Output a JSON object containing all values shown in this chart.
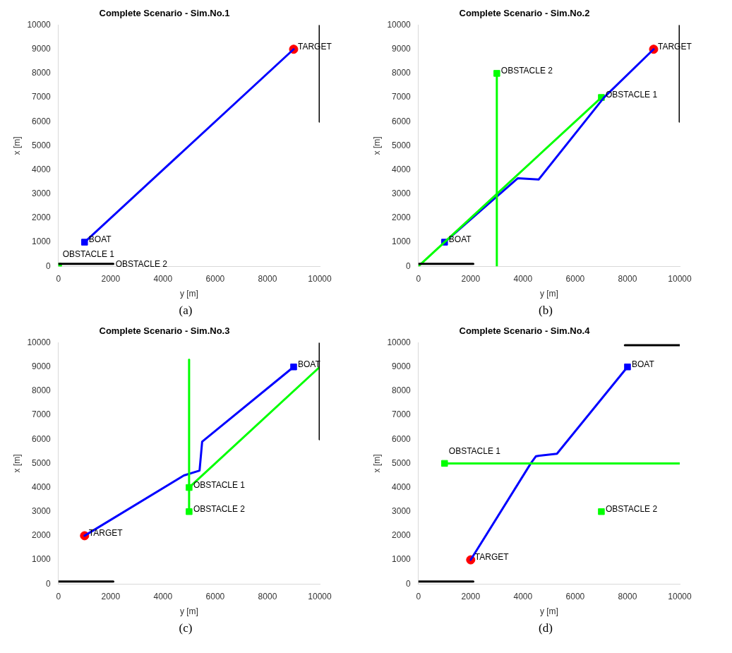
{
  "chart_data": [
    {
      "type": "line",
      "title": "Complete Scenario - Sim.No.1",
      "xlabel": "y [m]",
      "ylabel": "x [m]",
      "xlim": [
        0,
        10000
      ],
      "xticks": [
        0,
        2000,
        4000,
        6000,
        8000,
        10000
      ],
      "ylim": [
        0,
        10000
      ],
      "yticks": [
        0,
        1000,
        2000,
        3000,
        4000,
        5000,
        6000,
        7000,
        8000,
        9000,
        10000
      ],
      "grid": false,
      "legend": false,
      "annotations": [
        "(a)"
      ],
      "series": [
        {
          "type": "line",
          "color": "#000000",
          "x": [
            10000,
            10000
          ],
          "values": [
            6000,
            10000
          ]
        },
        {
          "type": "line",
          "color": "#000000",
          "x": [
            0,
            2100
          ],
          "values": [
            100,
            100
          ]
        },
        {
          "type": "line",
          "color": "#0000ff",
          "x": [
            1000,
            9000
          ],
          "values": [
            1000,
            9000
          ]
        },
        {
          "type": "scatter",
          "name": "BOAT",
          "color": "#0000ff",
          "marker": "square",
          "x": [
            1000
          ],
          "values": [
            1000
          ]
        },
        {
          "type": "scatter",
          "name": "TARGET",
          "color": "#ff0000",
          "marker": "circle",
          "x": [
            9000
          ],
          "values": [
            9000
          ]
        },
        {
          "type": "scatter",
          "name": "OBSTACLE 1",
          "color": "#00ff00",
          "marker": "square",
          "x": [
            0
          ],
          "values": [
            0
          ]
        },
        {
          "type": "scatter",
          "name": "OBSTACLE 2",
          "color": "#00ff00",
          "marker": "square",
          "x": [
            0
          ],
          "values": [
            0
          ]
        }
      ]
    },
    {
      "type": "line",
      "title": "Complete Scenario - Sim.No.2",
      "xlabel": "y [m]",
      "ylabel": "x [m]",
      "xlim": [
        0,
        10000
      ],
      "xticks": [
        0,
        2000,
        4000,
        6000,
        8000,
        10000
      ],
      "ylim": [
        0,
        10000
      ],
      "yticks": [
        0,
        1000,
        2000,
        3000,
        4000,
        5000,
        6000,
        7000,
        8000,
        9000,
        10000
      ],
      "grid": false,
      "legend": false,
      "annotations": [
        "(b)"
      ],
      "series": [
        {
          "type": "line",
          "color": "#000000",
          "x": [
            10000,
            10000
          ],
          "values": [
            6000,
            10000
          ]
        },
        {
          "type": "line",
          "color": "#000000",
          "x": [
            0,
            2100
          ],
          "values": [
            100,
            100
          ]
        },
        {
          "type": "line",
          "color": "#00ff00",
          "x": [
            7000,
            0
          ],
          "values": [
            7000,
            0
          ]
        },
        {
          "type": "line",
          "color": "#00ff00",
          "x": [
            3000,
            3000
          ],
          "values": [
            8000,
            0
          ]
        },
        {
          "type": "line",
          "color": "#0000ff",
          "x": [
            1000,
            3800,
            4600,
            7100,
            9000
          ],
          "values": [
            1000,
            3650,
            3600,
            7000,
            9000
          ]
        },
        {
          "type": "scatter",
          "name": "BOAT",
          "color": "#0000ff",
          "marker": "square",
          "x": [
            1000
          ],
          "values": [
            1000
          ]
        },
        {
          "type": "scatter",
          "name": "TARGET",
          "color": "#ff0000",
          "marker": "circle",
          "x": [
            9000
          ],
          "values": [
            9000
          ]
        },
        {
          "type": "scatter",
          "name": "OBSTACLE 1",
          "color": "#00ff00",
          "marker": "square",
          "x": [
            7000
          ],
          "values": [
            7000
          ]
        },
        {
          "type": "scatter",
          "name": "OBSTACLE 2",
          "color": "#00ff00",
          "marker": "square",
          "x": [
            3000
          ],
          "values": [
            8000
          ]
        }
      ]
    },
    {
      "type": "line",
      "title": "Complete Scenario - Sim.No.3",
      "xlabel": "y [m]",
      "ylabel": "x [m]",
      "xlim": [
        0,
        10000
      ],
      "xticks": [
        0,
        2000,
        4000,
        6000,
        8000,
        10000
      ],
      "ylim": [
        0,
        10000
      ],
      "yticks": [
        0,
        1000,
        2000,
        3000,
        4000,
        5000,
        6000,
        7000,
        8000,
        9000,
        10000
      ],
      "grid": false,
      "legend": false,
      "annotations": [
        "(c)"
      ],
      "series": [
        {
          "type": "line",
          "color": "#000000",
          "x": [
            10000,
            10000
          ],
          "values": [
            6000,
            10000
          ]
        },
        {
          "type": "line",
          "color": "#000000",
          "x": [
            0,
            2100
          ],
          "values": [
            100,
            100
          ]
        },
        {
          "type": "line",
          "color": "#00ff00",
          "x": [
            5000,
            10000
          ],
          "values": [
            4000,
            9000
          ]
        },
        {
          "type": "line",
          "color": "#00ff00",
          "x": [
            5000,
            5000
          ],
          "values": [
            3000,
            9300
          ]
        },
        {
          "type": "line",
          "color": "#0000ff",
          "x": [
            9000,
            5500,
            5400,
            4800,
            1000
          ],
          "values": [
            9000,
            5900,
            4700,
            4500,
            2000
          ]
        },
        {
          "type": "scatter",
          "name": "BOAT",
          "color": "#0000ff",
          "marker": "square",
          "x": [
            9000
          ],
          "values": [
            9000
          ]
        },
        {
          "type": "scatter",
          "name": "TARGET",
          "color": "#ff0000",
          "marker": "circle",
          "x": [
            1000
          ],
          "values": [
            2000
          ]
        },
        {
          "type": "scatter",
          "name": "OBSTACLE 1",
          "color": "#00ff00",
          "marker": "square",
          "x": [
            5000
          ],
          "values": [
            4000
          ]
        },
        {
          "type": "scatter",
          "name": "OBSTACLE 2",
          "color": "#00ff00",
          "marker": "square",
          "x": [
            5000
          ],
          "values": [
            3000
          ]
        }
      ]
    },
    {
      "type": "line",
      "title": "Complete Scenario - Sim.No.4",
      "xlabel": "y [m]",
      "ylabel": "x [m]",
      "xlim": [
        0,
        10000
      ],
      "xticks": [
        0,
        2000,
        4000,
        6000,
        8000,
        10000
      ],
      "ylim": [
        0,
        10000
      ],
      "yticks": [
        0,
        1000,
        2000,
        3000,
        4000,
        5000,
        6000,
        7000,
        8000,
        9000,
        10000
      ],
      "grid": false,
      "legend": false,
      "annotations": [
        "(d)"
      ],
      "series": [
        {
          "type": "line",
          "color": "#000000",
          "x": [
            7900,
            10000
          ],
          "values": [
            9900,
            9900
          ]
        },
        {
          "type": "line",
          "color": "#000000",
          "x": [
            0,
            2100
          ],
          "values": [
            100,
            100
          ]
        },
        {
          "type": "line",
          "color": "#00ff00",
          "x": [
            1000,
            10000
          ],
          "values": [
            5000,
            5000
          ]
        },
        {
          "type": "line",
          "color": "#0000ff",
          "x": [
            8000,
            5300,
            4500,
            4300,
            2000
          ],
          "values": [
            9000,
            5400,
            5300,
            5000,
            1000
          ]
        },
        {
          "type": "scatter",
          "name": "BOAT",
          "color": "#0000ff",
          "marker": "square",
          "x": [
            8000
          ],
          "values": [
            9000
          ]
        },
        {
          "type": "scatter",
          "name": "TARGET",
          "color": "#ff0000",
          "marker": "circle",
          "x": [
            2000
          ],
          "values": [
            1000
          ]
        },
        {
          "type": "scatter",
          "name": "OBSTACLE 1",
          "color": "#00ff00",
          "marker": "square",
          "x": [
            1000
          ],
          "values": [
            5000
          ]
        },
        {
          "type": "scatter",
          "name": "OBSTACLE 2",
          "color": "#00ff00",
          "marker": "square",
          "x": [
            7000
          ],
          "values": [
            3000
          ]
        }
      ]
    }
  ]
}
